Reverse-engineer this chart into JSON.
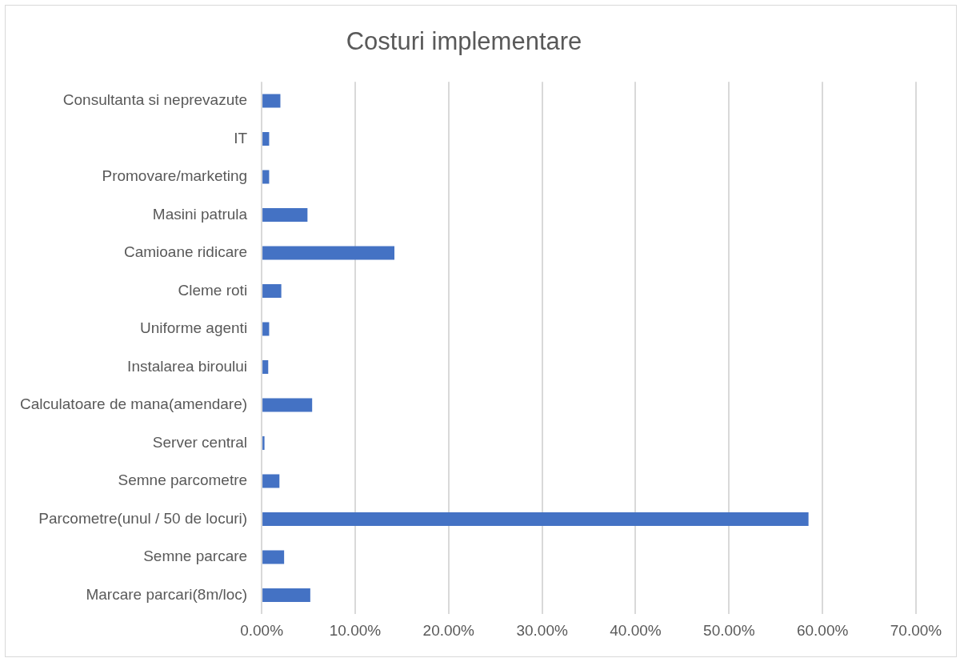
{
  "chart_data": {
    "type": "bar",
    "orientation": "horizontal",
    "title": "Costuri implementare",
    "categories": [
      "Consultanta si neprevazute",
      "IT",
      "Promovare/marketing",
      "Masini patrula",
      "Camioane ridicare",
      "Cleme roti",
      "Uniforme agenti",
      "Instalarea biroului",
      "Calculatoare de mana(amendare)",
      "Server central",
      "Semne parcometre",
      "Parcometre(unul / 50 de locuri)",
      "Semne parcare",
      "Marcare parcari(8m/loc)"
    ],
    "values": [
      2.0,
      0.8,
      0.8,
      4.9,
      14.2,
      2.1,
      0.8,
      0.7,
      5.4,
      0.3,
      1.9,
      58.5,
      2.4,
      5.2
    ],
    "color": "#4472c4",
    "xlim": [
      0,
      70
    ],
    "xticks": [
      {
        "value": 0,
        "label": "0.00%"
      },
      {
        "value": 10,
        "label": "10.00%"
      },
      {
        "value": 20,
        "label": "20.00%"
      },
      {
        "value": 30,
        "label": "30.00%"
      },
      {
        "value": 40,
        "label": "40.00%"
      },
      {
        "value": 50,
        "label": "50.00%"
      },
      {
        "value": 60,
        "label": "60.00%"
      },
      {
        "value": 70,
        "label": "70.00%"
      }
    ],
    "grid": "x",
    "legend": false
  }
}
